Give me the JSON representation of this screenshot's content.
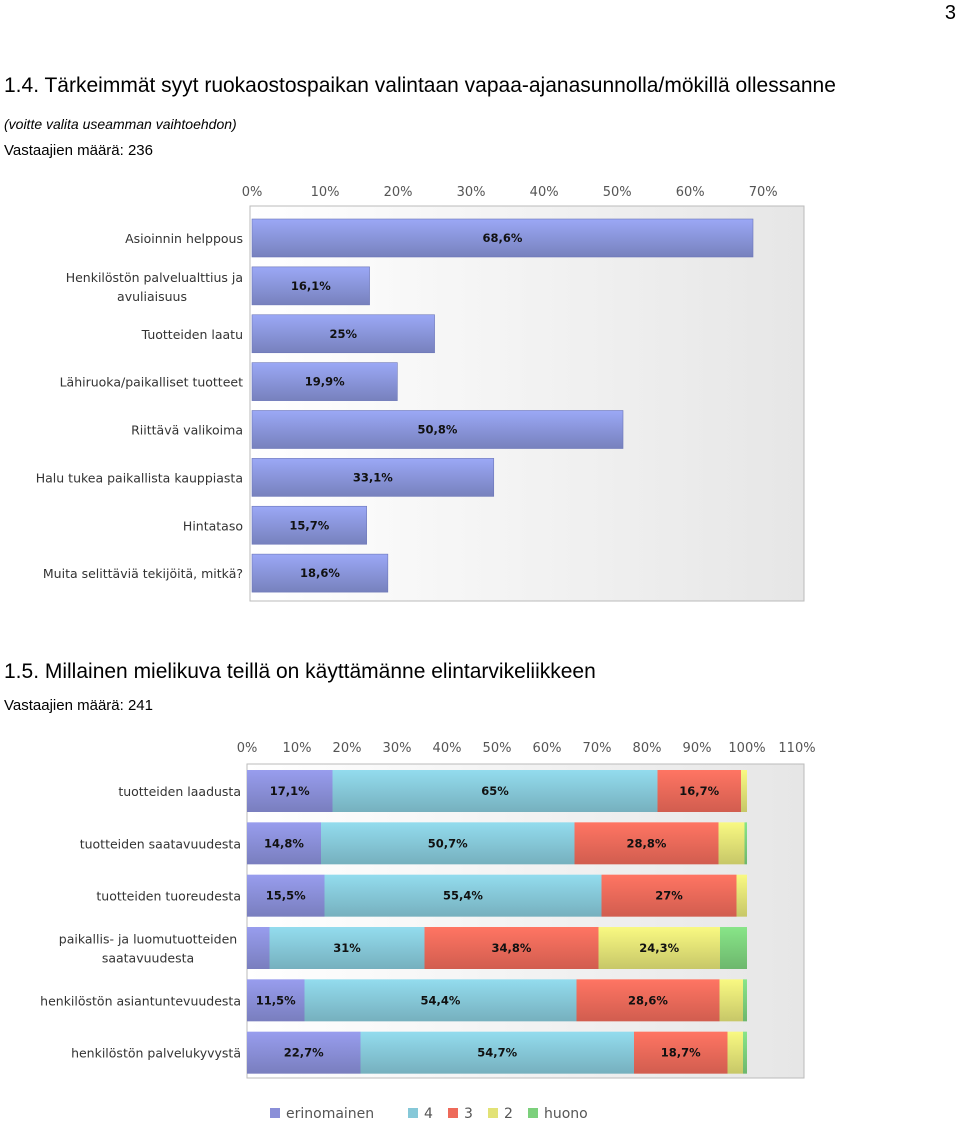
{
  "page_number": "3",
  "section1": {
    "title": "1.4. Tärkeimmät syyt ruokaostospaikan valintaan vapaa-ajanasunnolla/mökillä ollessanne",
    "subtitle": "(voitte valita useamman vaihtoehdon)",
    "respondents": "Vastaajien määrä: 236"
  },
  "section2": {
    "title": "1.5. Millainen mielikuva teillä on käyttämänne elintarvikeliikkeen",
    "respondents": "Vastaajien määrä: 241"
  },
  "chart_data": [
    {
      "type": "bar",
      "orientation": "horizontal",
      "categories": [
        "Asioinnin helppous",
        "Henkilöstön palvelualttius ja avuliaisuus",
        "Tuotteiden laatu",
        "Lähiruoka/paikalliset tuotteet",
        "Riittävä valikoima",
        "Halu tukea paikallista kauppiasta",
        "Hintataso",
        "Muita selittäviä tekijöitä, mitkä?"
      ],
      "values": [
        68.6,
        16.1,
        25,
        19.9,
        50.8,
        33.1,
        15.7,
        18.6
      ],
      "value_labels": [
        "68,6%",
        "16,1%",
        "25%",
        "19,9%",
        "50,8%",
        "33,1%",
        "15,7%",
        "18,6%"
      ],
      "xlim": [
        0,
        75
      ],
      "xticks": [
        0,
        10,
        20,
        30,
        40,
        50,
        60,
        70
      ],
      "xtick_labels": [
        "0%",
        "10%",
        "20%",
        "30%",
        "40%",
        "50%",
        "60%",
        "70%"
      ],
      "grid": false,
      "colors": {
        "bar": "#8a96dc"
      }
    },
    {
      "type": "bar",
      "orientation": "horizontal",
      "stacked": true,
      "categories": [
        "tuotteiden laadusta",
        "tuotteiden saatavuudesta",
        "tuotteiden tuoreudesta",
        "paikallis- ja luomutuotteiden saatavuudesta",
        "henkilöstön asiantuntevuudesta",
        "henkilöstön palvelukyvystä"
      ],
      "series": [
        {
          "name": "erinomainen",
          "color": "#8a8fd8",
          "values": [
            17.1,
            14.8,
            15.5,
            4.5,
            11.5,
            22.7
          ],
          "labels": [
            "17,1%",
            "14,8%",
            "15,5%",
            "",
            "11,5%",
            "22,7%"
          ]
        },
        {
          "name": "4",
          "color": "#86c8d8",
          "values": [
            65,
            50.7,
            55.4,
            31,
            54.4,
            54.7
          ],
          "labels": [
            "65%",
            "50,7%",
            "55,4%",
            "31%",
            "54,4%",
            "54,7%"
          ]
        },
        {
          "name": "3",
          "color": "#ee6a5a",
          "values": [
            16.7,
            28.8,
            27,
            34.8,
            28.6,
            18.7
          ],
          "labels": [
            "16,7%",
            "28,8%",
            "27%",
            "34,8%",
            "28,6%",
            "18,7%"
          ]
        },
        {
          "name": "2",
          "color": "#e2e276",
          "values": [
            1.2,
            5.2,
            2.1,
            24.3,
            4.7,
            3.1
          ],
          "labels": [
            "",
            "",
            "",
            "24,3%",
            "",
            ""
          ]
        },
        {
          "name": "huono",
          "color": "#7cd07c",
          "values": [
            0,
            0.5,
            0,
            5.4,
            0.8,
            0.8
          ],
          "labels": [
            "",
            "",
            "",
            "",
            "",
            ""
          ]
        }
      ],
      "xlim": [
        0,
        110
      ],
      "xticks": [
        0,
        10,
        20,
        30,
        40,
        50,
        60,
        70,
        80,
        90,
        100,
        110
      ],
      "xtick_labels": [
        "0%",
        "10%",
        "20%",
        "30%",
        "40%",
        "50%",
        "60%",
        "70%",
        "80%",
        "90%",
        "100%",
        "110%"
      ],
      "legend": "bottom",
      "grid": false
    }
  ]
}
